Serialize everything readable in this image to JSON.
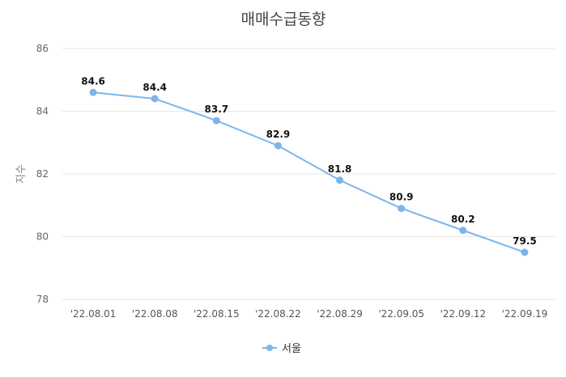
{
  "chart_data": {
    "type": "line",
    "title": "매매수급동향",
    "xlabel": "",
    "ylabel": "지수",
    "ylim": [
      78,
      86
    ],
    "yticks": [
      "78",
      "80",
      "82",
      "84",
      "86"
    ],
    "grid": true,
    "legend_position": "bottom",
    "categories": [
      "'22.08.01",
      "'22.08.08",
      "'22.08.15",
      "'22.08.22",
      "'22.08.29",
      "'22.09.05",
      "'22.09.12",
      "'22.09.19"
    ],
    "series": [
      {
        "name": "서울",
        "color": "#7cb5ec",
        "values": [
          84.6,
          84.4,
          83.7,
          82.9,
          81.8,
          80.9,
          80.2,
          79.5
        ],
        "labels": [
          "84.6",
          "84.4",
          "83.7",
          "82.9",
          "81.8",
          "80.9",
          "80.2",
          "79.5"
        ]
      }
    ]
  }
}
